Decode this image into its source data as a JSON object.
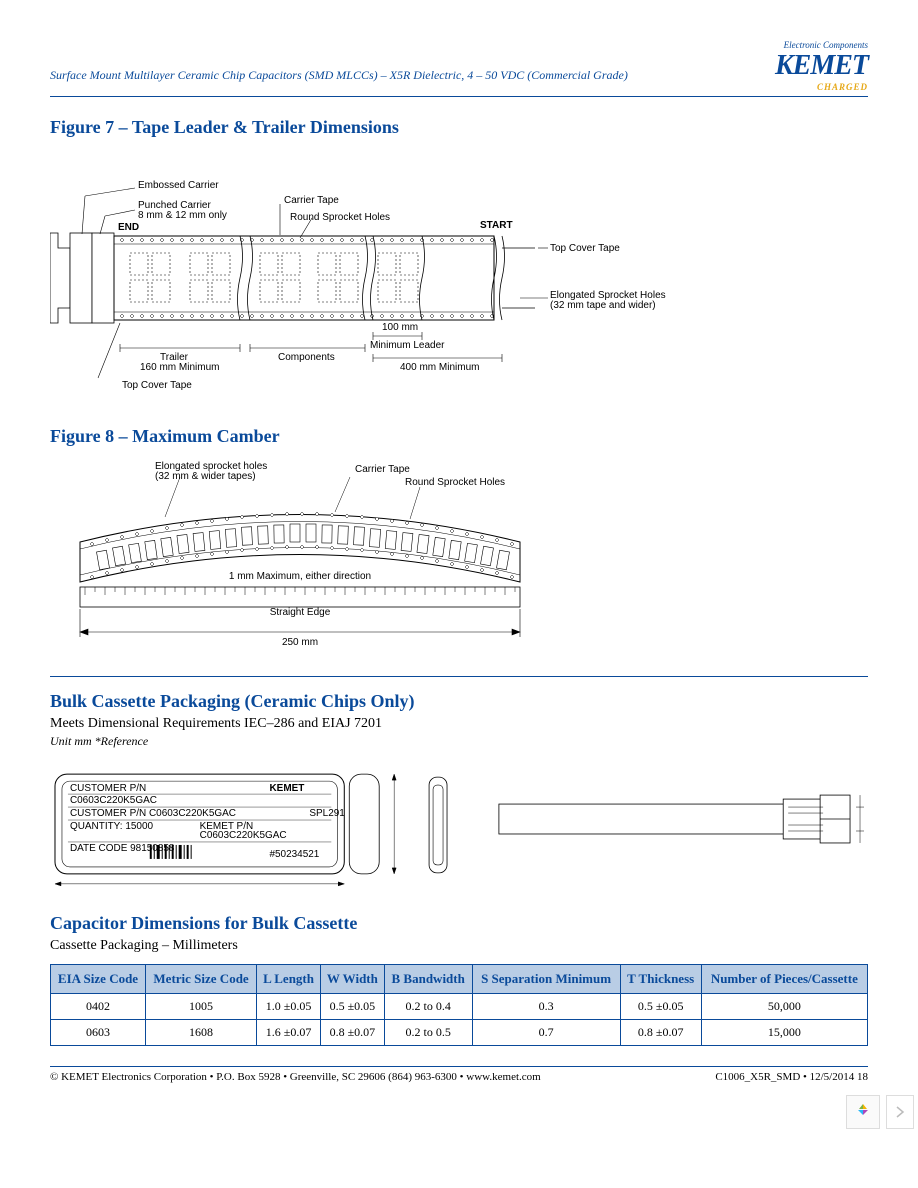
{
  "header": {
    "doc_title": "Surface Mount Multilayer Ceramic Chip Capacitors (SMD MLCCs) – X5R Dielectric, 4 – 50 VDC (Commercial Grade)",
    "logo_sup": "Electronic Components",
    "logo_main": "KEMET",
    "logo_sub": "CHARGED"
  },
  "figure7": {
    "title": "Figure 7 – Tape Leader & Trailer Dimensions",
    "labels": {
      "embossed": "Embossed Carrier",
      "punched": "Punched Carrier\n8 mm & 12 mm only",
      "end": "END",
      "carrier_tape": "Carrier Tape",
      "round_sprocket": "Round Sprocket Holes",
      "start": "START",
      "top_cover": "Top Cover Tape",
      "elongated": "Elongated Sprocket Holes\n(32 mm tape and wider)",
      "trailer": "Trailer\n160 mm Minimum",
      "components": "Components",
      "min_leader_100": "100 mm\nMinimum Leader",
      "min_400": "400 mm Minimum",
      "top_cover_bottom": "Top Cover Tape"
    }
  },
  "figure8": {
    "title": "Figure 8 – Maximum Camber",
    "labels": {
      "elongated": "Elongated sprocket holes\n(32 mm & wider tapes)",
      "carrier_tape": "Carrier Tape",
      "round_sprocket": "Round Sprocket Holes",
      "max_note": "1 mm Maximum, either direction",
      "straight_edge": "Straight Edge",
      "dim": "250 mm"
    }
  },
  "bulk_section": {
    "title": "Bulk Cassette Packaging (Ceramic Chips Only)",
    "subtitle": "Meets Dimensional Requirements IEC–286 and EIAJ 7201",
    "unit_note": "Unit mm *Reference",
    "cassette_labels": {
      "brand": "KEMET",
      "customer_pn": "CUSTOMER P/N",
      "pn1": "C0603C220K5GAC",
      "customer_pn2": "CUSTOMER P/N C0603C220K5GAC",
      "lot": "SPL291",
      "qty": "QUANTITY: 15000",
      "kemet_pn_lbl": "KEMET P/N",
      "kemet_pn": "C0603C220K5GAC",
      "datecode": "DATE CODE 98150858",
      "serial": "#50234521"
    }
  },
  "dims_section": {
    "title": "Capacitor Dimensions for Bulk Cassette",
    "subtitle": "Cassette Packaging – Millimeters"
  },
  "table": {
    "columns": [
      "EIA Size Code",
      "Metric Size Code",
      "L Length",
      "W Width",
      "B Bandwidth",
      "S Separation Minimum",
      "T Thickness",
      "Number of Pieces/Cassette"
    ],
    "rows": [
      [
        "0402",
        "1005",
        "1.0 ±0.05",
        "0.5 ±0.05",
        "0.2 to 0.4",
        "0.3",
        "0.5 ±0.05",
        "50,000"
      ],
      [
        "0603",
        "1608",
        "1.6 ±0.07",
        "0.8 ±0.07",
        "0.2 to 0.5",
        "0.7",
        "0.8 ±0.07",
        "15,000"
      ]
    ],
    "header_bg": "#b9cde5",
    "header_color": "#0a4a9a",
    "border_color": "#0a4a9a"
  },
  "footer": {
    "left": "© KEMET Electronics Corporation • P.O. Box 5928 • Greenville, SC 29606 (864) 963-6300 • www.kemet.com",
    "right": "C1006_X5R_SMD • 12/5/2014 18"
  },
  "colors": {
    "brand_blue": "#0a4a9a",
    "brand_gold": "#e6a817",
    "table_header_bg": "#b9cde5"
  }
}
